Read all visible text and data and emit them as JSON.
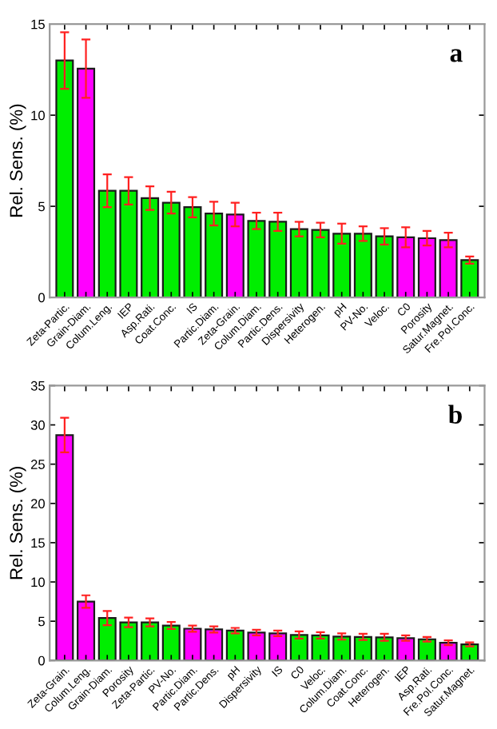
{
  "chart_data": [
    {
      "type": "bar",
      "ylabel": "Rel. Sens. (%)",
      "annotations": [
        "a"
      ],
      "ylim": [
        0,
        15
      ],
      "yticks": [
        0,
        5,
        10,
        15
      ],
      "grid": false,
      "categories": [
        "Zeta-Partic.",
        "Grain-Diam.",
        "Colum.Leng.",
        "IEP",
        "Asp.Rati.",
        "Coat.Conc.",
        "IS",
        "Partic.Diam.",
        "Zeta-Grain.",
        "Colum.Diam.",
        "Partic.Dens.",
        "Dispersivity",
        "Heterogen.",
        "pH",
        "PV-No.",
        "Veloc.",
        "C0",
        "Porosity",
        "Satur.Magnet.",
        "Fre.Pol.Conc."
      ],
      "values": [
        13.0,
        12.55,
        5.85,
        5.85,
        5.45,
        5.2,
        4.95,
        4.6,
        4.55,
        4.2,
        4.15,
        3.75,
        3.7,
        3.5,
        3.5,
        3.35,
        3.3,
        3.25,
        3.15,
        2.05
      ],
      "errors": [
        1.55,
        1.6,
        0.9,
        0.75,
        0.65,
        0.6,
        0.55,
        0.65,
        0.65,
        0.45,
        0.5,
        0.4,
        0.4,
        0.55,
        0.4,
        0.45,
        0.55,
        0.4,
        0.4,
        0.2
      ],
      "colors": [
        "#00ee00",
        "#ff00ff",
        "#00ee00",
        "#00ee00",
        "#00ee00",
        "#00ee00",
        "#00ee00",
        "#00ee00",
        "#ff00ff",
        "#00ee00",
        "#00ee00",
        "#00ee00",
        "#00ee00",
        "#00ee00",
        "#00ee00",
        "#00ee00",
        "#ff00ff",
        "#ff00ff",
        "#ff00ff",
        "#00ee00"
      ]
    },
    {
      "type": "bar",
      "ylabel": "Rel. Sens. (%)",
      "annotations": [
        "b"
      ],
      "ylim": [
        0,
        35
      ],
      "yticks": [
        0,
        5,
        10,
        15,
        20,
        25,
        30,
        35
      ],
      "grid": false,
      "categories": [
        "Zeta-Grain.",
        "Colum.Leng.",
        "Grain-Diam.",
        "Porosity",
        "Zeta-Partic.",
        "PV-No.",
        "Partic.Diam.",
        "Partic.Dens.",
        "pH",
        "Dispersivity",
        "IS",
        "C0",
        "Veloc.",
        "Colum.Diam.",
        "Coat.Conc.",
        "Heterogen.",
        "IEP",
        "Asp.Rati.",
        "Fre.Pol.Conc.",
        "Satur.Magnet."
      ],
      "values": [
        28.7,
        7.5,
        5.4,
        4.85,
        4.85,
        4.45,
        4.05,
        3.95,
        3.8,
        3.55,
        3.45,
        3.25,
        3.2,
        3.05,
        3.0,
        2.95,
        2.85,
        2.7,
        2.25,
        2.05
      ],
      "errors": [
        2.2,
        0.8,
        0.9,
        0.6,
        0.5,
        0.45,
        0.4,
        0.4,
        0.35,
        0.35,
        0.35,
        0.45,
        0.4,
        0.4,
        0.4,
        0.45,
        0.35,
        0.3,
        0.3,
        0.25
      ],
      "colors": [
        "#ff00ff",
        "#ff00ff",
        "#00ee00",
        "#00ee00",
        "#00ee00",
        "#00ee00",
        "#ff00ff",
        "#ff00ff",
        "#00ee00",
        "#ff00ff",
        "#ff00ff",
        "#00ee00",
        "#00ee00",
        "#00ee00",
        "#00ee00",
        "#00ee00",
        "#ff00ff",
        "#00ee00",
        "#ff00ff",
        "#00ee00"
      ]
    }
  ]
}
